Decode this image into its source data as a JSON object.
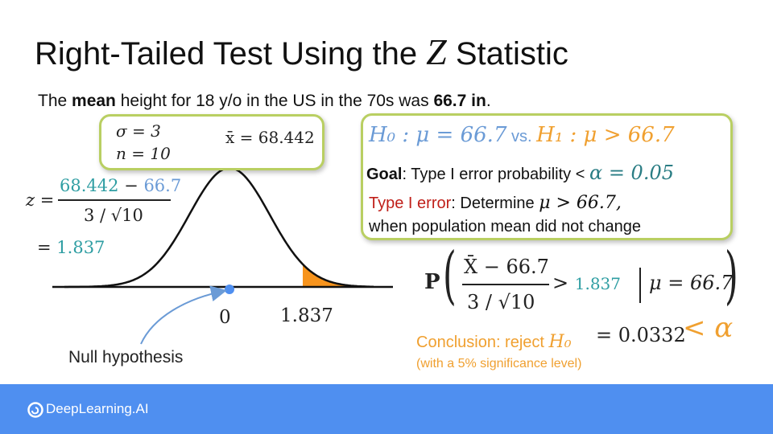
{
  "title": {
    "prefix": "Right-Tailed Test Using the ",
    "var": "Z",
    "suffix": " Statistic"
  },
  "intro": {
    "part1": "The ",
    "bold1": "mean",
    "part2": "  height for 18 y/o in the US in the 70s was ",
    "bold2": "66.7 in",
    "part3": "."
  },
  "sample_box": {
    "sigma": "σ = 3",
    "n": "n = 10",
    "xbar": "x̄ = 68.442"
  },
  "z_calc": {
    "z_eq": "z =",
    "num_a": "68.442",
    "num_minus": " − ",
    "num_b": "66.7",
    "denominator": "3 / √10",
    "result_eq": "=",
    "result": "1.837"
  },
  "hypothesis_box": {
    "h0": "H₀ : μ = 66.7",
    "vs": " vs. ",
    "h1": "H₁ : μ > 66.7",
    "goal_label": "Goal",
    "goal_text": ": Type I error probability < ",
    "alpha_eq": "α = 0.05",
    "error_label": "Type I error",
    "error_text": ": Determine ",
    "error_math": "μ > 66.7,",
    "error_line2": "when population mean did not change"
  },
  "curve": {
    "label_zero": "0",
    "label_z": "1.837",
    "null_label": "Null hypothesis"
  },
  "probability": {
    "p": "P",
    "num": "X̄ − 66.7",
    "den": "3 / √10",
    "gt": " > ",
    "z": "1.837",
    "cond": "μ = 66.7",
    "result": "= 0.0332",
    "lt_alpha": "< α"
  },
  "conclusion": {
    "text": "Conclusion: reject ",
    "h0": "H₀",
    "note": "(with a 5% significance level)"
  },
  "footer": {
    "brand": "DeepLearning.AI"
  },
  "colors": {
    "teal": "#2f9ea3",
    "blue": "#6b9bd6",
    "orange": "#f0a030",
    "red": "#c0201a",
    "box_border": "#b9cf62",
    "footer_bg": "#4f8ff0"
  }
}
